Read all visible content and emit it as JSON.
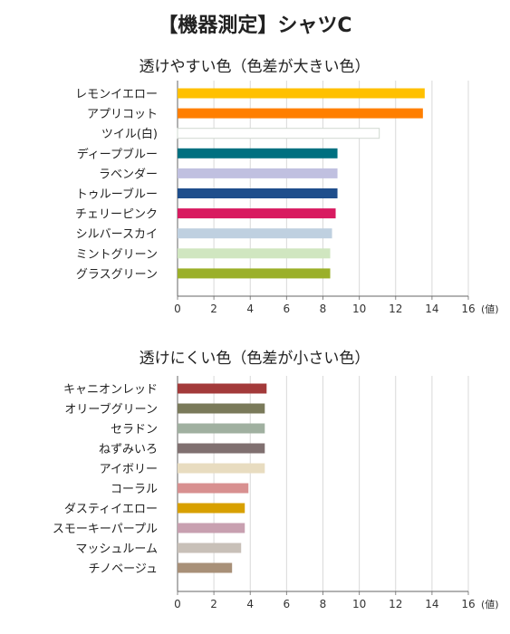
{
  "page": {
    "title": "【機器測定】シャツC"
  },
  "chart_data": [
    {
      "type": "bar",
      "orientation": "horizontal",
      "title": "透けやすい色（色差が大きい色）",
      "xlabel": "(値)",
      "xlim": [
        0,
        16
      ],
      "xticks": [
        0,
        2,
        4,
        6,
        8,
        10,
        12,
        14,
        16
      ],
      "grid": true,
      "categories": [
        "レモンイエロー",
        "アプリコット",
        "ツイル(白)",
        "ディープブルー",
        "ラベンダー",
        "トゥルーブルー",
        "チェリーピンク",
        "シルバースカイ",
        "ミントグリーン",
        "グラスグリーン"
      ],
      "values": [
        13.6,
        13.5,
        11.1,
        8.8,
        8.8,
        8.8,
        8.7,
        8.5,
        8.4,
        8.4
      ],
      "colors": [
        "#FFC000",
        "#FF7F00",
        "#FFFFFF",
        "#007080",
        "#C0C0E0",
        "#1F4E8C",
        "#D81B60",
        "#BFD0E0",
        "#D0E6C0",
        "#9BB02A"
      ]
    },
    {
      "type": "bar",
      "orientation": "horizontal",
      "title": "透けにくい色（色差が小さい色）",
      "xlabel": "(値)",
      "xlim": [
        0,
        16
      ],
      "xticks": [
        0,
        2,
        4,
        6,
        8,
        10,
        12,
        14,
        16
      ],
      "grid": true,
      "categories": [
        "キャニオンレッド",
        "オリーブグリーン",
        "セラドン",
        "ねずみいろ",
        "アイボリー",
        "コーラル",
        "ダスティイエロー",
        "スモーキーパープル",
        "マッシュルーム",
        "チノベージュ"
      ],
      "values": [
        4.9,
        4.8,
        4.8,
        4.8,
        4.8,
        3.9,
        3.7,
        3.7,
        3.5,
        3.0
      ],
      "colors": [
        "#A33A3A",
        "#7A7A5A",
        "#A0B0A0",
        "#807070",
        "#E8DCC0",
        "#D89090",
        "#D8A000",
        "#C8A0B0",
        "#C8C0B8",
        "#A89078"
      ]
    }
  ]
}
